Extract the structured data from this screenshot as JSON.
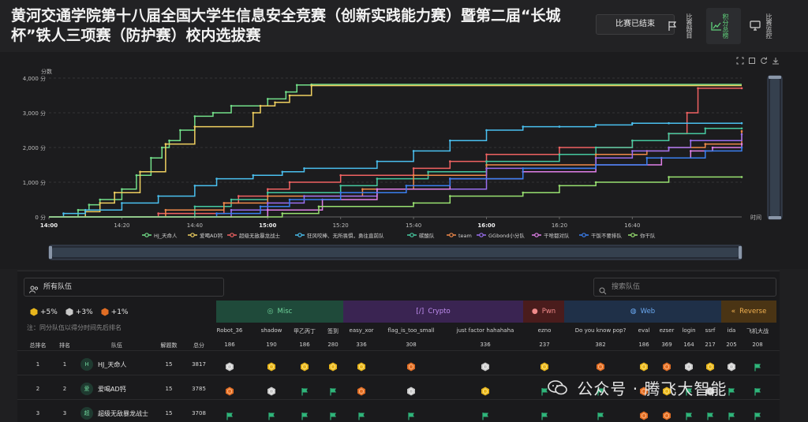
{
  "header": {
    "title": "黄河交通学院第十八届全国大学生信息安全竞赛（创新实践能力赛）暨第二届“长城杯”铁人三项赛（防护赛）校内选拔赛",
    "status": "比赛已结束",
    "tab_detail": "比赛题目",
    "tab_board": "积分总榜",
    "tab_monitor": "比赛监控"
  },
  "chart_data": {
    "type": "line",
    "step": true,
    "ylabel": "分数",
    "xlabel": "时间",
    "ylim": [
      0,
      4000
    ],
    "yticks": [
      "0 分",
      "1,000 分",
      "2,000 分",
      "3,000 分",
      "4,000 分"
    ],
    "xticks": [
      "14:00",
      "14:20",
      "14:40",
      "15:00",
      "15:20",
      "15:40",
      "16:00",
      "16:20",
      "16:40"
    ],
    "xlim_minutes": [
      0,
      190
    ],
    "legend_position": "bottom",
    "grid": true,
    "series": [
      {
        "name": "HJ_天命人",
        "color": "#73e08a",
        "x": [
          0,
          8,
          11,
          14,
          20,
          24,
          28,
          31,
          33,
          36,
          40,
          45,
          50,
          60,
          65,
          68,
          72
        ],
        "y": [
          0,
          200,
          350,
          500,
          800,
          1200,
          1700,
          2000,
          2200,
          2500,
          2900,
          3000,
          3200,
          3400,
          3600,
          3800,
          3817
        ]
      },
      {
        "name": "爱喝AD钙",
        "color": "#f0d060",
        "x": [
          0,
          10,
          14,
          18,
          25,
          32,
          40,
          56,
          58,
          62,
          66,
          72
        ],
        "y": [
          0,
          150,
          400,
          700,
          1300,
          2100,
          2600,
          3000,
          3200,
          3300,
          3500,
          3785
        ]
      },
      {
        "name": "超级无敌暴龙战士",
        "color": "#f06262",
        "x": [
          0,
          30,
          48,
          52,
          60,
          66,
          80,
          100,
          110,
          120,
          140,
          160,
          170,
          175,
          178,
          190
        ],
        "y": [
          0,
          100,
          400,
          600,
          800,
          1000,
          1200,
          1400,
          1600,
          1800,
          2000,
          2200,
          2400,
          3000,
          3708,
          3708
        ]
      },
      {
        "name": "狂风咬棒、无所畏惧，勇往直前队",
        "color": "#4ac0f0",
        "x": [
          0,
          4,
          10,
          20,
          30,
          40,
          46,
          56,
          64,
          70,
          90,
          100,
          110,
          120,
          130,
          140,
          150,
          160,
          170,
          190
        ],
        "y": [
          0,
          100,
          200,
          400,
          600,
          900,
          1100,
          1200,
          1300,
          1400,
          1600,
          1900,
          2200,
          2500,
          2600,
          2600,
          2650,
          2700,
          2700,
          2700
        ]
      },
      {
        "name": "碳酸队",
        "color": "#46c9a0",
        "x": [
          0,
          40,
          50,
          60,
          80,
          90,
          104,
          120,
          140,
          150,
          160,
          170,
          180,
          190
        ],
        "y": [
          0,
          300,
          500,
          700,
          900,
          1100,
          1300,
          1600,
          1800,
          2000,
          2200,
          2400,
          2550,
          2550
        ]
      },
      {
        "name": "team",
        "color": "#f08a4a",
        "x": [
          0,
          32,
          48,
          60,
          86,
          100,
          120,
          150,
          164,
          170,
          180,
          190
        ],
        "y": [
          0,
          200,
          400,
          600,
          800,
          1200,
          1500,
          1800,
          1900,
          2000,
          2100,
          2470
        ]
      },
      {
        "name": "GGbond小分队",
        "color": "#9a6ef0",
        "x": [
          0,
          50,
          60,
          70,
          90,
          120,
          150,
          160,
          170,
          176,
          190
        ],
        "y": [
          0,
          200,
          400,
          600,
          800,
          1400,
          1700,
          1900,
          2000,
          2200,
          2380
        ]
      },
      {
        "name": "干啥都对队",
        "color": "#e080e8",
        "x": [
          0,
          60,
          75,
          90,
          110,
          130,
          150,
          168,
          176,
          182,
          190
        ],
        "y": [
          0,
          200,
          500,
          800,
          1100,
          1300,
          1500,
          1700,
          1900,
          2000,
          2100
        ]
      },
      {
        "name": "干饭不要排队",
        "color": "#3a7ff0",
        "x": [
          0,
          46,
          58,
          66,
          80,
          98,
          110,
          130,
          150,
          164,
          180,
          190
        ],
        "y": [
          0,
          100,
          300,
          500,
          700,
          900,
          1100,
          1400,
          1500,
          1700,
          1900,
          2000
        ]
      },
      {
        "name": "你干队",
        "color": "#98e070",
        "x": [
          0,
          64,
          74,
          100,
          110,
          130,
          140,
          150,
          170,
          190
        ],
        "y": [
          0,
          100,
          300,
          400,
          600,
          700,
          900,
          1000,
          1150,
          1150
        ]
      }
    ]
  },
  "board": {
    "filter_label": "所有队伍",
    "search_placeholder": "搜索队伍",
    "bonus": [
      "+5%",
      "+3%",
      "+1%"
    ],
    "note": "注：同分队伍以得分时间先后排名",
    "categories": [
      {
        "label": "Misc",
        "color": "#1f4a3a",
        "text": "#6fd39a"
      },
      {
        "label": "Crypto",
        "color": "#3a2452",
        "text": "#c08ef0"
      },
      {
        "label": "Pwn",
        "color": "#4a1c1c",
        "text": "#f08a8a"
      },
      {
        "label": "Web",
        "color": "#1f3048",
        "text": "#6aa8f0"
      },
      {
        "label": "Reverse",
        "color": "#4a3414",
        "text": "#f0b050"
      }
    ],
    "challenges": [
      {
        "name": "Robot_36",
        "score": "186"
      },
      {
        "name": "shadow",
        "score": "190"
      },
      {
        "name": "甲乙丙丁",
        "score": "186"
      },
      {
        "name": "签到",
        "score": "280"
      },
      {
        "name": "easy_xor",
        "score": "336"
      },
      {
        "name": "flag_is_too_small",
        "score": "308"
      },
      {
        "name": "just factor hahahaha",
        "score": "336"
      },
      {
        "name": "ezno",
        "score": "237"
      },
      {
        "name": "Do you know pop?",
        "score": "382"
      },
      {
        "name": "eval",
        "score": "186"
      },
      {
        "name": "ezser",
        "score": "369"
      },
      {
        "name": "login",
        "score": "164"
      },
      {
        "name": "ssrf",
        "score": "217"
      },
      {
        "name": "ida",
        "score": "205"
      },
      {
        "name": "飞机大战",
        "score": "208"
      }
    ],
    "columns": {
      "overall_rank": "总排名",
      "rank": "排名",
      "team": "队伍",
      "solved": "解题数",
      "total": "总分"
    },
    "rows": [
      {
        "overall_rank": "1",
        "rank": "1",
        "avatar": "H",
        "team": "HJ_天命人",
        "solved": "15",
        "total": "3817",
        "marks": [
          "silver",
          "gold",
          "gold",
          "gold",
          "gold",
          "bronze",
          "silver",
          "gold",
          "bronze",
          "gold",
          "bronze",
          "silver",
          "gold",
          "silver",
          "flag"
        ]
      },
      {
        "overall_rank": "2",
        "rank": "2",
        "avatar": "爱",
        "team": "爱喝AD钙",
        "solved": "15",
        "total": "3785",
        "marks": [
          "bronze",
          "silver",
          "flag",
          "flag",
          "bronze",
          "silver",
          "gold",
          "flag",
          "flag",
          "bronze",
          "gold",
          "flag",
          "silver",
          "flag",
          "flag"
        ]
      },
      {
        "overall_rank": "3",
        "rank": "3",
        "avatar": "超",
        "team": "超级无敌暴龙战士",
        "solved": "15",
        "total": "3708",
        "marks": [
          "flag",
          "flag",
          "flag",
          "flag",
          "flag",
          "flag",
          "flag",
          "flag",
          "flag",
          "bronze",
          "bronze",
          "flag",
          "flag",
          "flag",
          "flag"
        ]
      }
    ]
  },
  "watermark": "公众号 · 腾飞大智能"
}
